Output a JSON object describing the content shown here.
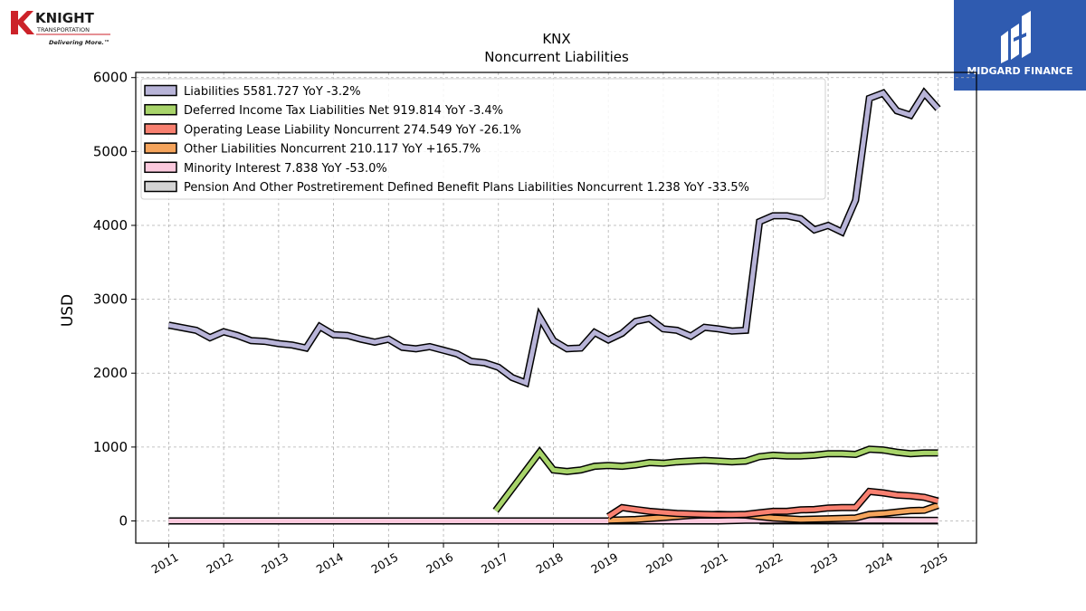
{
  "branding": {
    "left_logo": {
      "name": "KNIGHT",
      "sub": "TRANSPORTATION",
      "tagline": "Delivering More.™"
    },
    "right_logo": {
      "name": "MIDGARD FINANCE",
      "bg_color": "#2f5bb0"
    }
  },
  "chart_data": {
    "type": "line",
    "title": "KNX",
    "subtitle": "Noncurrent  Liabilities",
    "xlabel": "",
    "ylabel": "USD",
    "xlim": [
      2010.4,
      2025.7
    ],
    "ylim": [
      -300,
      6070
    ],
    "x_ticks": [
      "2011",
      "2012",
      "2013",
      "2014",
      "2015",
      "2016",
      "2017",
      "2018",
      "2019",
      "2020",
      "2021",
      "2022",
      "2023",
      "2024",
      "2025"
    ],
    "y_ticks": [
      "0",
      "1000",
      "2000",
      "3000",
      "4000",
      "5000",
      "6000"
    ],
    "grid": true,
    "legend_position": "top-left",
    "series": [
      {
        "name": "Liabilities  5581.727 YoY -3.2%",
        "color": "#b8b4d8",
        "points": [
          [
            2011.0,
            2650
          ],
          [
            2011.5,
            2580
          ],
          [
            2011.75,
            2480
          ],
          [
            2012.0,
            2560
          ],
          [
            2012.25,
            2510
          ],
          [
            2012.5,
            2440
          ],
          [
            2012.75,
            2430
          ],
          [
            2013.0,
            2400
          ],
          [
            2013.25,
            2380
          ],
          [
            2013.5,
            2340
          ],
          [
            2013.75,
            2630
          ],
          [
            2014.0,
            2520
          ],
          [
            2014.25,
            2510
          ],
          [
            2014.5,
            2460
          ],
          [
            2014.75,
            2420
          ],
          [
            2015.0,
            2460
          ],
          [
            2015.25,
            2350
          ],
          [
            2015.5,
            2330
          ],
          [
            2015.75,
            2360
          ],
          [
            2016.0,
            2310
          ],
          [
            2016.25,
            2260
          ],
          [
            2016.5,
            2160
          ],
          [
            2016.75,
            2140
          ],
          [
            2017.0,
            2080
          ],
          [
            2017.25,
            1940
          ],
          [
            2017.5,
            1870
          ],
          [
            2017.75,
            2760
          ],
          [
            2018.0,
            2440
          ],
          [
            2018.25,
            2330
          ],
          [
            2018.5,
            2340
          ],
          [
            2018.75,
            2550
          ],
          [
            2019.0,
            2450
          ],
          [
            2019.25,
            2540
          ],
          [
            2019.5,
            2700
          ],
          [
            2019.75,
            2740
          ],
          [
            2020.0,
            2600
          ],
          [
            2020.25,
            2580
          ],
          [
            2020.5,
            2500
          ],
          [
            2020.75,
            2620
          ],
          [
            2021.0,
            2600
          ],
          [
            2021.25,
            2570
          ],
          [
            2021.5,
            2580
          ],
          [
            2021.75,
            4050
          ],
          [
            2022.0,
            4130
          ],
          [
            2022.25,
            4130
          ],
          [
            2022.5,
            4090
          ],
          [
            2022.75,
            3940
          ],
          [
            2023.0,
            4000
          ],
          [
            2023.25,
            3910
          ],
          [
            2023.5,
            4340
          ],
          [
            2023.75,
            5720
          ],
          [
            2024.0,
            5790
          ],
          [
            2024.25,
            5550
          ],
          [
            2024.5,
            5490
          ],
          [
            2024.75,
            5790
          ],
          [
            2025.0,
            5580
          ]
        ]
      },
      {
        "name": "Deferred Income Tax Liabilities Net  919.814 YoY -3.4%",
        "color": "#a8d46a",
        "points": [
          [
            2016.95,
            140
          ],
          [
            2017.75,
            930
          ],
          [
            2018.0,
            690
          ],
          [
            2018.25,
            670
          ],
          [
            2018.5,
            690
          ],
          [
            2018.75,
            740
          ],
          [
            2019.0,
            750
          ],
          [
            2019.25,
            740
          ],
          [
            2019.5,
            760
          ],
          [
            2019.75,
            790
          ],
          [
            2020.0,
            780
          ],
          [
            2020.25,
            800
          ],
          [
            2020.5,
            810
          ],
          [
            2020.75,
            820
          ],
          [
            2021.0,
            810
          ],
          [
            2021.25,
            800
          ],
          [
            2021.5,
            810
          ],
          [
            2021.75,
            870
          ],
          [
            2022.0,
            890
          ],
          [
            2022.25,
            880
          ],
          [
            2022.5,
            880
          ],
          [
            2022.75,
            890
          ],
          [
            2023.0,
            910
          ],
          [
            2023.25,
            910
          ],
          [
            2023.5,
            900
          ],
          [
            2023.75,
            970
          ],
          [
            2024.0,
            960
          ],
          [
            2024.25,
            930
          ],
          [
            2024.5,
            910
          ],
          [
            2024.75,
            920
          ],
          [
            2025.0,
            920
          ]
        ]
      },
      {
        "name": "Operating Lease Liability Noncurrent  274.549 YoY -26.1%",
        "color": "#f88070",
        "points": [
          [
            2019.0,
            60
          ],
          [
            2019.25,
            180
          ],
          [
            2019.5,
            155
          ],
          [
            2019.75,
            130
          ],
          [
            2020.0,
            115
          ],
          [
            2020.25,
            100
          ],
          [
            2020.5,
            95
          ],
          [
            2020.75,
            90
          ],
          [
            2021.0,
            85
          ],
          [
            2021.25,
            85
          ],
          [
            2021.5,
            90
          ],
          [
            2021.75,
            110
          ],
          [
            2022.0,
            130
          ],
          [
            2022.25,
            130
          ],
          [
            2022.5,
            150
          ],
          [
            2022.75,
            155
          ],
          [
            2023.0,
            175
          ],
          [
            2023.25,
            180
          ],
          [
            2023.5,
            180
          ],
          [
            2023.75,
            400
          ],
          [
            2024.0,
            380
          ],
          [
            2024.25,
            350
          ],
          [
            2024.5,
            340
          ],
          [
            2024.75,
            320
          ],
          [
            2025.0,
            270
          ]
        ]
      },
      {
        "name": "Other Liabilities Noncurrent  210.117 YoY +165.7%",
        "color": "#f5a45c",
        "points": [
          [
            2019.0,
            10
          ],
          [
            2019.5,
            20
          ],
          [
            2020.0,
            45
          ],
          [
            2020.5,
            75
          ],
          [
            2021.0,
            90
          ],
          [
            2021.5,
            80
          ],
          [
            2022.0,
            40
          ],
          [
            2022.5,
            20
          ],
          [
            2023.0,
            30
          ],
          [
            2023.5,
            40
          ],
          [
            2023.75,
            90
          ],
          [
            2024.0,
            100
          ],
          [
            2024.25,
            120
          ],
          [
            2024.5,
            140
          ],
          [
            2024.75,
            145
          ],
          [
            2025.0,
            210
          ]
        ]
      },
      {
        "name": "Minority Interest  7.838 YoY -53.0%",
        "color": "#fbc9dd",
        "points": [
          [
            2011.0,
            0
          ],
          [
            2015.0,
            0
          ],
          [
            2017.0,
            0
          ],
          [
            2018.0,
            0
          ],
          [
            2019.0,
            0
          ],
          [
            2020.0,
            0
          ],
          [
            2021.0,
            0
          ],
          [
            2021.5,
            10
          ],
          [
            2022.0,
            10
          ],
          [
            2023.0,
            10
          ],
          [
            2024.0,
            10
          ],
          [
            2025.0,
            8
          ]
        ]
      },
      {
        "name": "Pension And Other Postretirement Defined Benefit Plans Liabilities Noncurrent  1.238 YoY -33.5%",
        "color": "#d4d4d4",
        "points": [
          [
            2021.75,
            1.5
          ],
          [
            2022.5,
            1.5
          ],
          [
            2023.5,
            1.5
          ],
          [
            2024.5,
            1.3
          ],
          [
            2025.0,
            1.238
          ]
        ]
      }
    ]
  }
}
